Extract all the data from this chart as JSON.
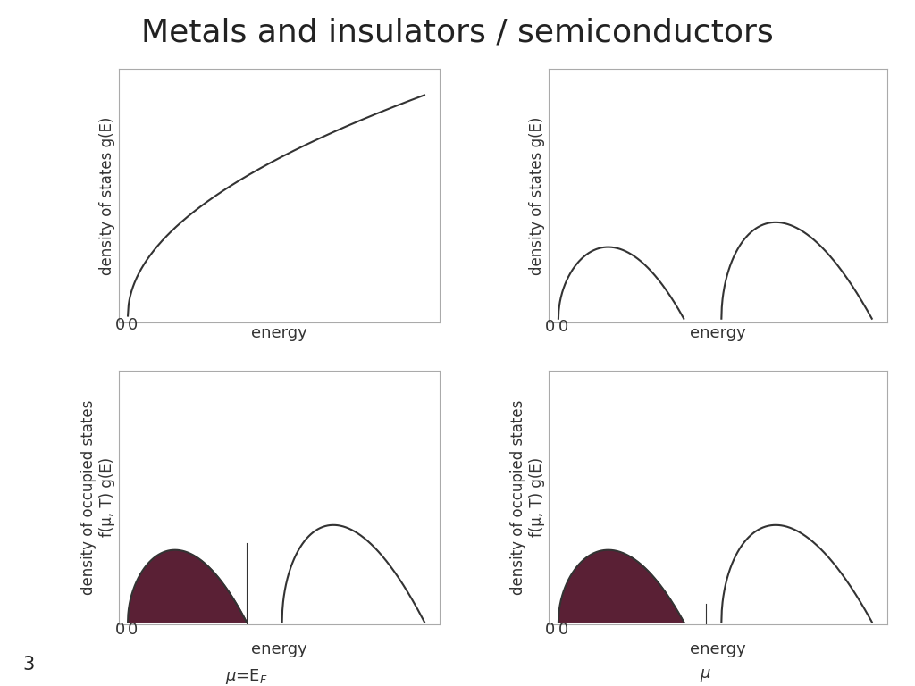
{
  "title": "Metals and insulators / semiconductors",
  "title_fontsize": 26,
  "title_color": "#222222",
  "bg_color": "#ffffff",
  "axes_bg": "#ffffff",
  "line_color": "#333333",
  "fill_color": "#5a2035",
  "ylabel_top": "density of states g(E)",
  "ylabel_bottom_line1": "density of occupied states",
  "ylabel_bottom_line2": "f(μ, T) g(E)",
  "xlabel": "energy",
  "label_fontsize": 13,
  "tick_fontsize": 13,
  "number_label": "3",
  "lw": 1.5
}
